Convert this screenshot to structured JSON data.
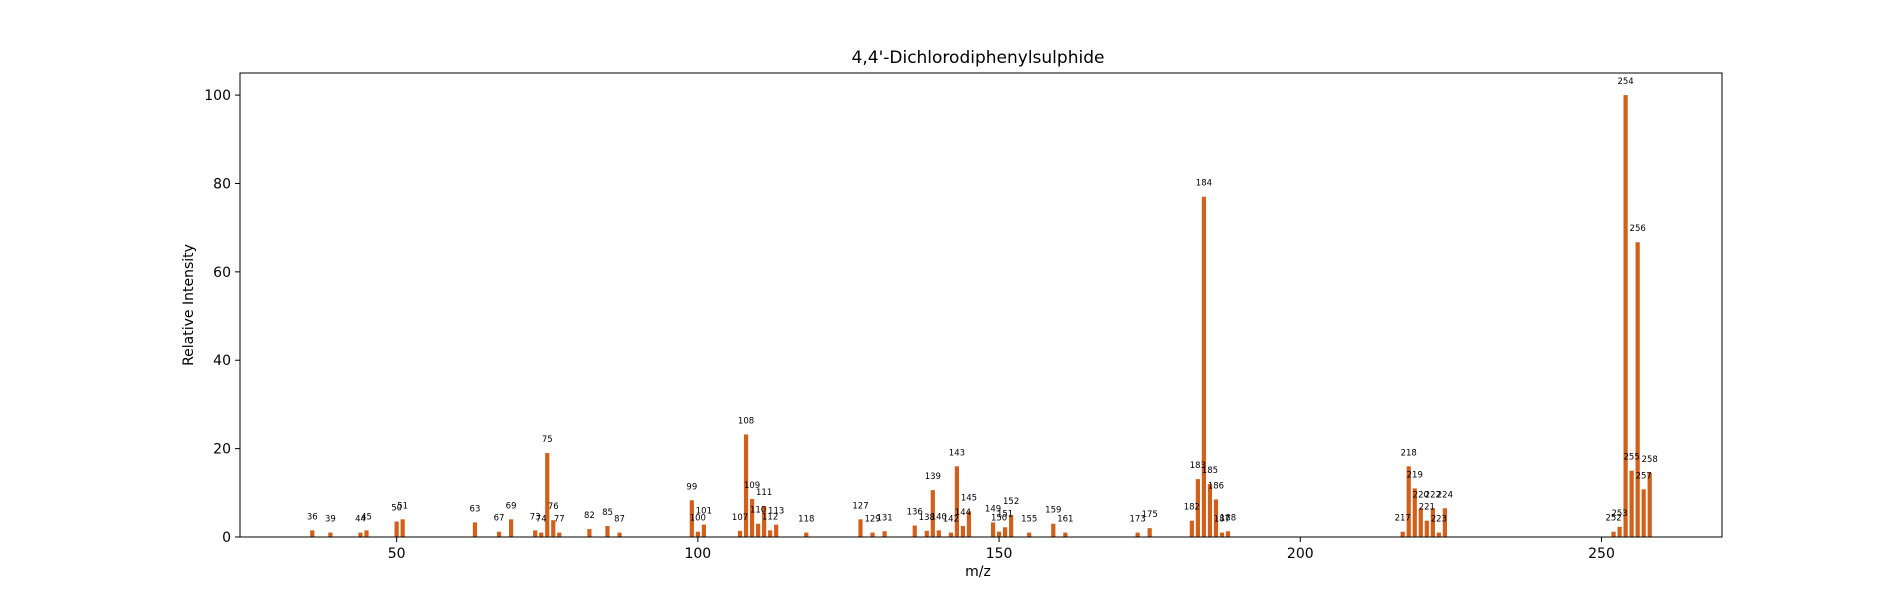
{
  "chart_data": {
    "type": "bar",
    "title": "4,4'-Dichlorodiphenylsulphide",
    "xlabel": "m/z",
    "ylabel": "Relative Intensity",
    "xlim": [
      24,
      270
    ],
    "ylim": [
      0,
      105
    ],
    "x_ticks": [
      50,
      100,
      150,
      200,
      250
    ],
    "y_ticks": [
      0,
      20,
      40,
      60,
      80,
      100
    ],
    "grid": false,
    "bar_color": "#d2601a",
    "points": [
      {
        "x": 36,
        "y": 1.5
      },
      {
        "x": 39,
        "y": 1.0
      },
      {
        "x": 44,
        "y": 1.0
      },
      {
        "x": 45,
        "y": 1.5
      },
      {
        "x": 50,
        "y": 3.5
      },
      {
        "x": 51,
        "y": 4.0
      },
      {
        "x": 63,
        "y": 3.3
      },
      {
        "x": 67,
        "y": 1.2
      },
      {
        "x": 69,
        "y": 4.0
      },
      {
        "x": 73,
        "y": 1.5
      },
      {
        "x": 74,
        "y": 1.0
      },
      {
        "x": 75,
        "y": 19.0
      },
      {
        "x": 76,
        "y": 3.8
      },
      {
        "x": 77,
        "y": 1.0
      },
      {
        "x": 82,
        "y": 1.8
      },
      {
        "x": 85,
        "y": 2.5
      },
      {
        "x": 87,
        "y": 1.0
      },
      {
        "x": 99,
        "y": 8.3
      },
      {
        "x": 100,
        "y": 1.2
      },
      {
        "x": 101,
        "y": 2.8
      },
      {
        "x": 107,
        "y": 1.4
      },
      {
        "x": 108,
        "y": 23.2
      },
      {
        "x": 109,
        "y": 8.6
      },
      {
        "x": 110,
        "y": 3.0
      },
      {
        "x": 111,
        "y": 7.0
      },
      {
        "x": 112,
        "y": 1.5
      },
      {
        "x": 113,
        "y": 2.8
      },
      {
        "x": 118,
        "y": 1.0
      },
      {
        "x": 127,
        "y": 4.0
      },
      {
        "x": 129,
        "y": 1.0
      },
      {
        "x": 131,
        "y": 1.3
      },
      {
        "x": 136,
        "y": 2.6
      },
      {
        "x": 138,
        "y": 1.4
      },
      {
        "x": 139,
        "y": 10.6
      },
      {
        "x": 140,
        "y": 1.5
      },
      {
        "x": 142,
        "y": 1.0
      },
      {
        "x": 143,
        "y": 16.0
      },
      {
        "x": 144,
        "y": 2.5
      },
      {
        "x": 145,
        "y": 5.8
      },
      {
        "x": 149,
        "y": 3.3
      },
      {
        "x": 150,
        "y": 1.2
      },
      {
        "x": 151,
        "y": 2.2
      },
      {
        "x": 152,
        "y": 5.0
      },
      {
        "x": 155,
        "y": 1.0
      },
      {
        "x": 159,
        "y": 3.0
      },
      {
        "x": 161,
        "y": 1.0
      },
      {
        "x": 173,
        "y": 1.0
      },
      {
        "x": 175,
        "y": 2.0
      },
      {
        "x": 182,
        "y": 3.7
      },
      {
        "x": 183,
        "y": 13.1
      },
      {
        "x": 184,
        "y": 77.0
      },
      {
        "x": 185,
        "y": 12.0
      },
      {
        "x": 186,
        "y": 8.5
      },
      {
        "x": 187,
        "y": 1.0
      },
      {
        "x": 188,
        "y": 1.3
      },
      {
        "x": 217,
        "y": 1.2
      },
      {
        "x": 218,
        "y": 16.0
      },
      {
        "x": 219,
        "y": 11.0
      },
      {
        "x": 220,
        "y": 6.5
      },
      {
        "x": 221,
        "y": 3.7
      },
      {
        "x": 222,
        "y": 6.5
      },
      {
        "x": 223,
        "y": 1.0
      },
      {
        "x": 224,
        "y": 6.5
      },
      {
        "x": 252,
        "y": 1.2
      },
      {
        "x": 253,
        "y": 2.3
      },
      {
        "x": 254,
        "y": 100.0
      },
      {
        "x": 255,
        "y": 15.0
      },
      {
        "x": 256,
        "y": 66.7
      },
      {
        "x": 257,
        "y": 10.8
      },
      {
        "x": 258,
        "y": 14.5
      }
    ]
  }
}
